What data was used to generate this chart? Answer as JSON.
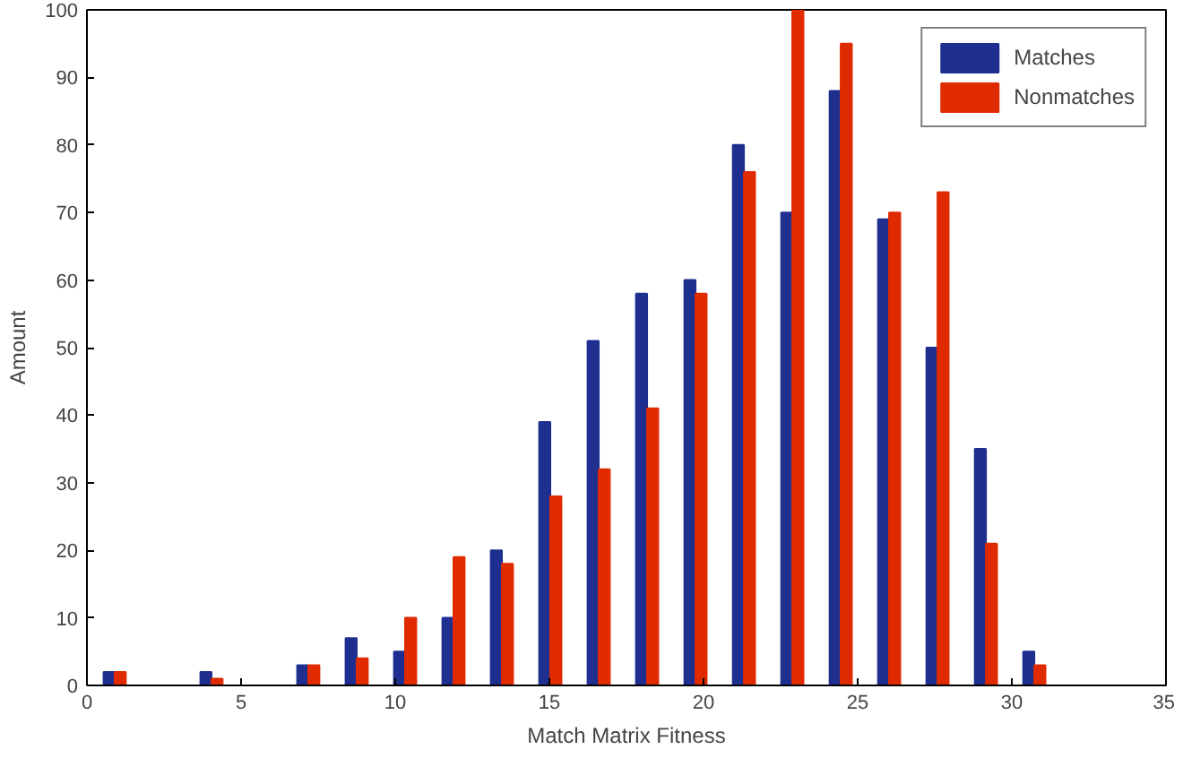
{
  "chart_data": {
    "type": "bar",
    "xlabel": "Match Matrix Fitness",
    "ylabel": "Amount",
    "x": [
      0.9,
      2.47,
      4.04,
      5.61,
      7.18,
      8.75,
      10.32,
      11.89,
      13.46,
      15.03,
      16.6,
      18.17,
      19.74,
      21.31,
      22.88,
      24.45,
      26.02,
      27.59,
      29.16,
      30.73
    ],
    "series": [
      {
        "name": "Matches",
        "color": "#1f2f8f",
        "values": [
          2,
          0,
          2,
          0,
          3,
          7,
          5,
          10,
          20,
          39,
          51,
          58,
          60,
          80,
          70,
          88,
          69,
          50,
          35,
          5
        ]
      },
      {
        "name": "Nonmatches",
        "color": "#e02a00",
        "values": [
          2,
          0,
          1,
          0,
          3,
          4,
          10,
          19,
          18,
          28,
          32,
          41,
          58,
          76,
          100,
          95,
          70,
          73,
          21,
          3
        ]
      }
    ],
    "xlim": [
      0,
      35
    ],
    "xticks": [
      0,
      5,
      10,
      15,
      20,
      25,
      30,
      35
    ],
    "ylim": [
      0,
      100
    ],
    "yticks": [
      0,
      10,
      20,
      30,
      40,
      50,
      60,
      70,
      80,
      90,
      100
    ],
    "grid": false,
    "legend": "top right"
  }
}
